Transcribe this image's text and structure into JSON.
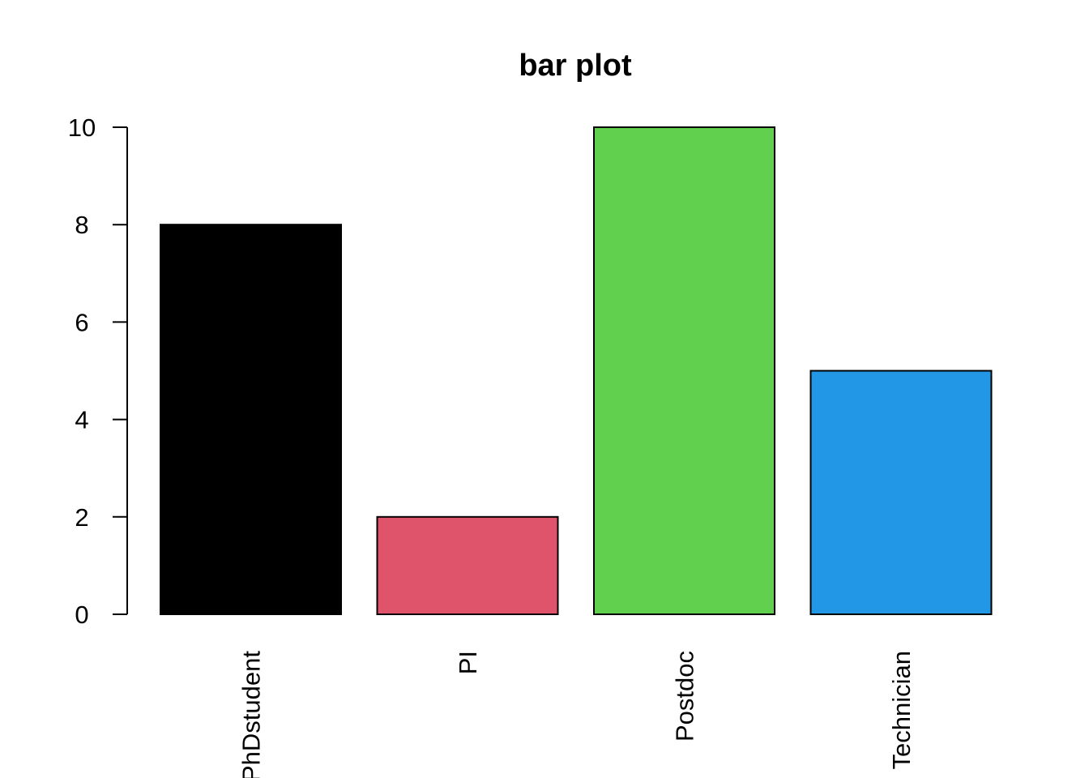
{
  "chart_data": {
    "type": "bar",
    "title": "bar plot",
    "xlabel": "",
    "ylabel": "",
    "categories": [
      "PhDstudent",
      "PI",
      "Postdoc",
      "Technician"
    ],
    "values": [
      8,
      2,
      10,
      5
    ],
    "colors": [
      "#000000",
      "#DF536B",
      "#61D04F",
      "#2297E6"
    ],
    "ylim": [
      0,
      10
    ],
    "yticks": [
      0,
      2,
      4,
      6,
      8,
      10
    ],
    "x_tick_label_orientation": "vertical",
    "grid": false,
    "legend": "none"
  }
}
